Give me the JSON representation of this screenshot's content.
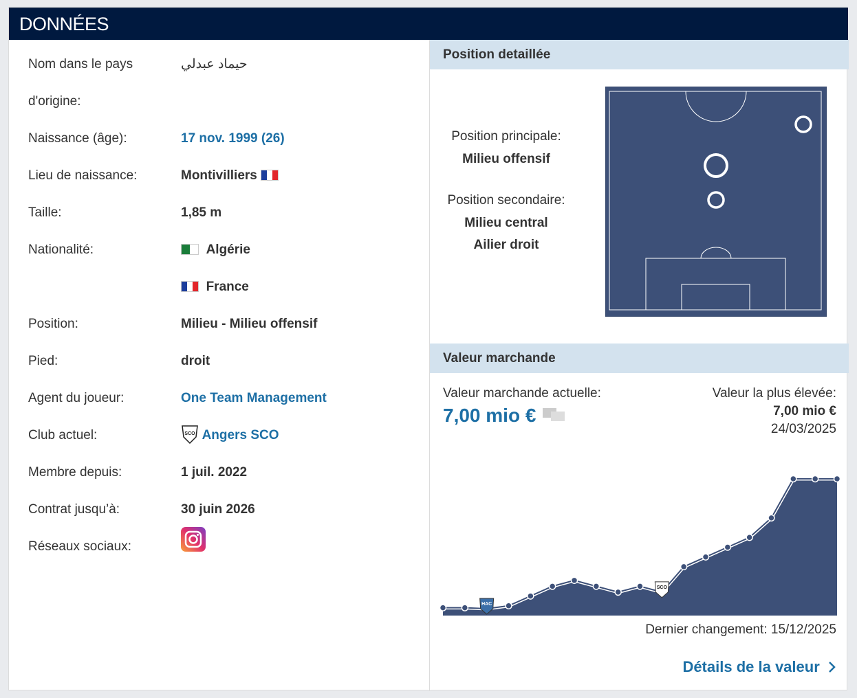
{
  "header": {
    "title": "DONNÉES"
  },
  "info": {
    "name_label": "Nom dans le pays d'origine:",
    "name_value": "حيماد عبدلي",
    "birth_label": "Naissance (âge):",
    "birth_value": "17 nov. 1999 (26)",
    "birthplace_label": "Lieu de naissance:",
    "birthplace_value": "Montivilliers",
    "height_label": "Taille:",
    "height_value": "1,85 m",
    "nationality_label": "Nationalité:",
    "nationality_values": [
      "Algérie",
      "France"
    ],
    "position_label": "Position:",
    "position_value": "Milieu - Milieu offensif",
    "foot_label": "Pied:",
    "foot_value": "droit",
    "agent_label": "Agent du joueur:",
    "agent_value": "One Team Management",
    "club_label": "Club actuel:",
    "club_value": "Angers SCO",
    "club_logo_text": "SCO",
    "since_label": "Membre depuis:",
    "since_value": "1 juil. 2022",
    "contract_label": "Contrat jusqu’à:",
    "contract_value": "30 juin 2026",
    "social_label": "Réseaux sociaux:"
  },
  "position": {
    "title": "Position detaillée",
    "main_label": "Position principale:",
    "main": "Milieu offensif",
    "secondary_label": "Position secondaire:",
    "secondary": [
      "Milieu central",
      "Ailier droit"
    ]
  },
  "market": {
    "title": "Valeur marchande",
    "current_label": "Valeur marchande actuelle:",
    "current": "7,00 mio €",
    "highest_label": "Valeur la plus élevée:",
    "highest": "7,00 mio €",
    "highest_date": "24/03/2025",
    "last_change": "Dernier changement: 15/12/2025",
    "details_link": "Détails de la valeur"
  },
  "chart_data": {
    "type": "area",
    "categories": [
      null,
      null,
      null,
      null,
      null,
      null,
      null,
      null,
      null,
      null,
      null,
      null,
      null,
      null,
      null,
      null,
      null,
      null,
      null
    ],
    "values": [
      0.4,
      0.4,
      0.35,
      0.5,
      1,
      1.5,
      1.8,
      1.5,
      1.2,
      1.5,
      1.2,
      2.5,
      3,
      3.5,
      4,
      5,
      7,
      7,
      7
    ],
    "ylim": [
      0,
      7
    ],
    "color": "#3d5078",
    "annotations": [
      "HAC",
      "SCO"
    ]
  }
}
